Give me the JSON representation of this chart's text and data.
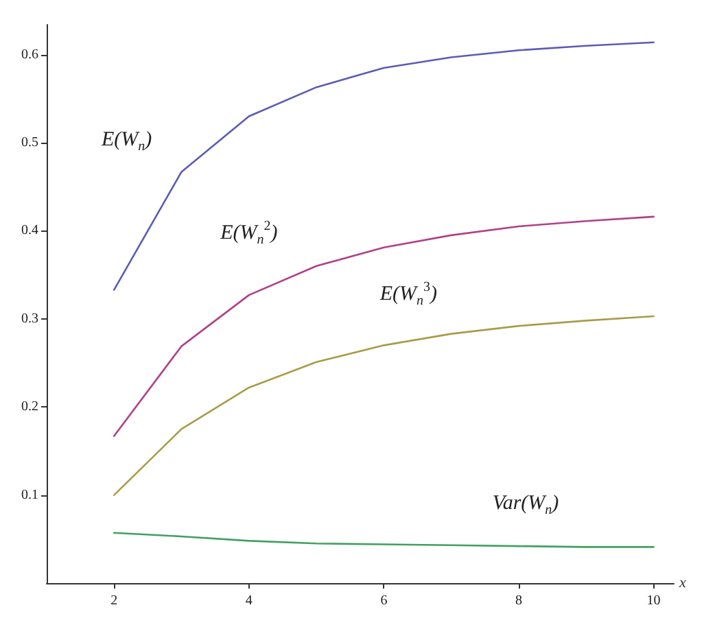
{
  "chart_data": {
    "type": "line",
    "xlabel": "x",
    "x": [
      2,
      3,
      4,
      5,
      6,
      7,
      8,
      9,
      10
    ],
    "series": [
      {
        "name": "E(W$_{n}$)",
        "color": "#5b5bb8",
        "values": [
          0.333,
          0.467,
          0.53,
          0.563,
          0.585,
          0.597,
          0.605,
          0.61,
          0.614
        ]
      },
      {
        "name": "E(W$_{n}$$^{2}$)",
        "color": "#b0408a",
        "values": [
          0.167,
          0.269,
          0.327,
          0.36,
          0.381,
          0.395,
          0.405,
          0.411,
          0.416
        ]
      },
      {
        "name": "E(W$_{n}$$^{3}$)",
        "color": "#a89c48",
        "values": [
          0.1,
          0.175,
          0.222,
          0.251,
          0.27,
          0.283,
          0.292,
          0.298,
          0.303
        ]
      },
      {
        "name": "Var(W$_{n}$)",
        "color": "#40a060",
        "values": [
          0.057,
          0.053,
          0.048,
          0.045,
          0.044,
          0.043,
          0.042,
          0.041,
          0.041
        ]
      }
    ],
    "xlim": [
      1,
      10.3
    ],
    "xticks": [
      2,
      4,
      6,
      8,
      10
    ],
    "ylim": [
      0,
      0.634
    ],
    "yticks": [
      0.1,
      0.2,
      0.3,
      0.4,
      0.5,
      0.6
    ],
    "grid": false,
    "marker": "none",
    "line_style": "solid"
  }
}
